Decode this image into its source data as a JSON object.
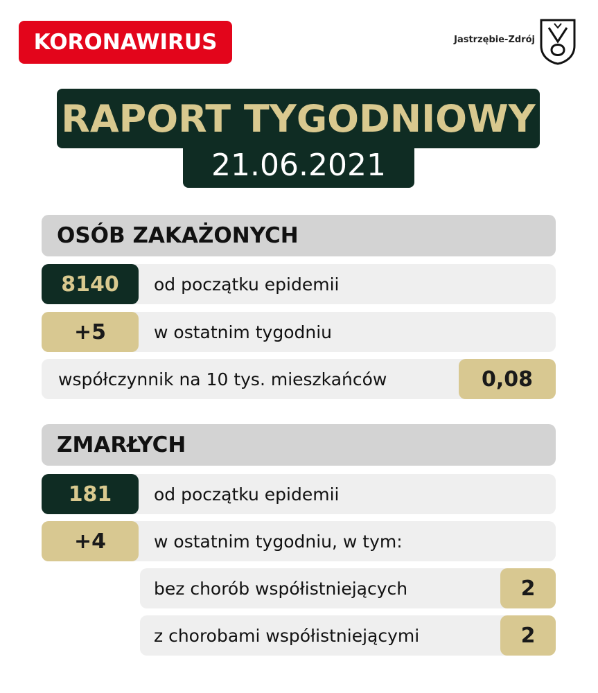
{
  "header": {
    "badge": "KORONAWIRUS",
    "logo_text": "Jastrzębie-Zdrój",
    "title": "RAPORT TYGODNIOWY",
    "date": "21.06.2021"
  },
  "sections": [
    {
      "title": "OSÓB ZAKAŻONYCH",
      "rows": [
        {
          "value": "8140",
          "label": "od początku epidemii"
        },
        {
          "value": "+5",
          "label": "w ostatnim tygodniu"
        },
        {
          "value": "0,08",
          "label": "współczynnik na 10 tys. mieszkańców"
        }
      ]
    },
    {
      "title": "ZMARŁYCH",
      "rows": [
        {
          "value": "181",
          "label": "od początku epidemii"
        },
        {
          "value": "+4",
          "label": "w ostatnim tygodniu, w tym:"
        },
        {
          "value": "2",
          "label": "bez chorób współistniejących"
        },
        {
          "value": "2",
          "label": "z chorobami współistniejącymi"
        }
      ]
    }
  ]
}
